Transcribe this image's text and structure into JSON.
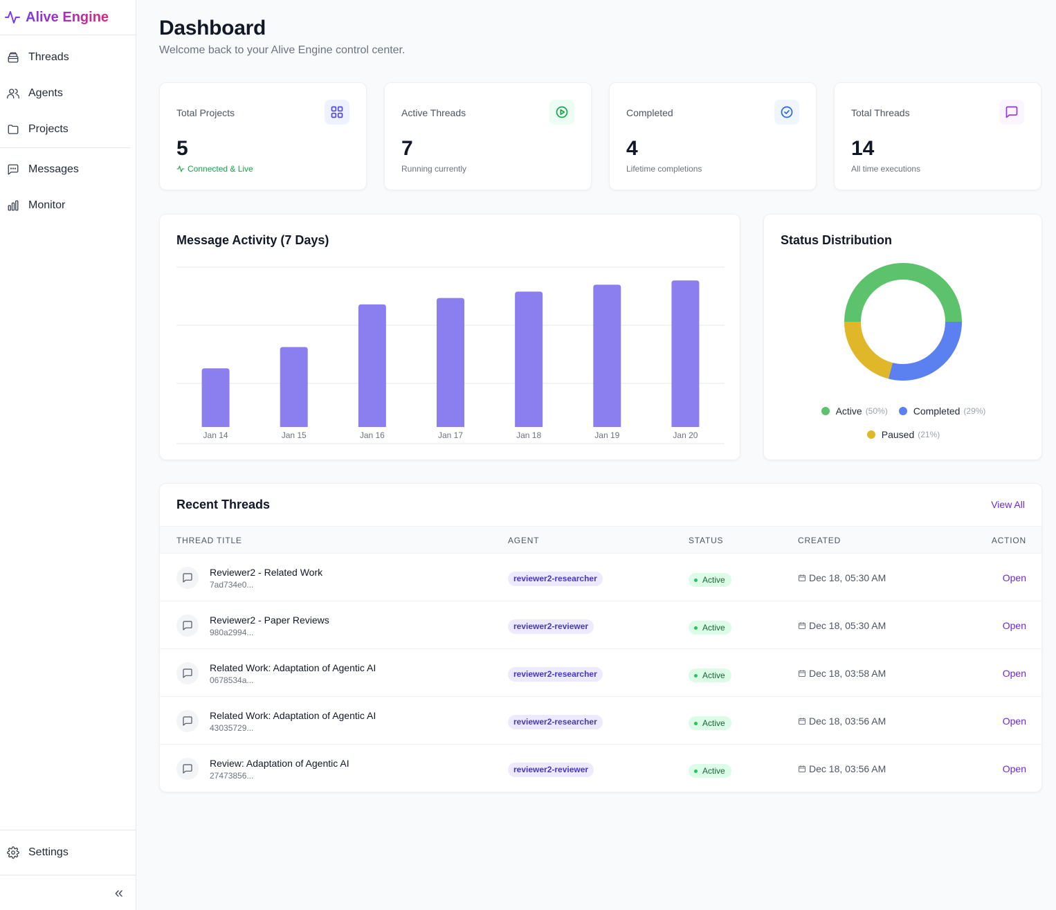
{
  "brand": {
    "name": "Alive Engine"
  },
  "sidebar": {
    "items": [
      {
        "label": "Threads",
        "icon": "threads-icon"
      },
      {
        "label": "Agents",
        "icon": "users-icon"
      },
      {
        "label": "Projects",
        "icon": "folder-icon"
      },
      {
        "label": "Messages",
        "icon": "message-icon"
      },
      {
        "label": "Monitor",
        "icon": "bar-chart-icon"
      }
    ],
    "settings": {
      "label": "Settings",
      "icon": "gear-icon"
    },
    "collapse_glyph": "«"
  },
  "page": {
    "title": "Dashboard",
    "subtitle": "Welcome back to your Alive Engine control center."
  },
  "stats": [
    {
      "label": "Total Projects",
      "value": "5",
      "sub": "Connected & Live",
      "icon": "grid-icon",
      "color": "#4f46e5",
      "bg": "#eef2ff"
    },
    {
      "label": "Active Threads",
      "value": "7",
      "sub": "Running currently",
      "icon": "play-circle-icon",
      "color": "#16a34a",
      "bg": "#ecfdf3"
    },
    {
      "label": "Completed",
      "value": "4",
      "sub": "Lifetime completions",
      "icon": "check-circle-icon",
      "color": "#2563eb",
      "bg": "#eff6ff"
    },
    {
      "label": "Total Threads",
      "value": "14",
      "sub": "All time executions",
      "icon": "message-square-icon",
      "color": "#9333ea",
      "bg": "#faf5ff"
    }
  ],
  "activity": {
    "title": "Message Activity (7 Days)"
  },
  "status": {
    "title": "Status Distribution"
  },
  "chart_data": [
    {
      "type": "bar",
      "title": "Message Activity (7 Days)",
      "categories": [
        "Jan 14",
        "Jan 15",
        "Jan 16",
        "Jan 17",
        "Jan 18",
        "Jan 19",
        "Jan 20"
      ],
      "values": [
        11,
        15,
        23,
        24.2,
        25.4,
        26.7,
        27.5
      ],
      "ylim": [
        0,
        30
      ],
      "grid": true,
      "color": "#8b7ff0"
    },
    {
      "type": "pie",
      "title": "Status Distribution",
      "categories": [
        "Active",
        "Completed",
        "Paused"
      ],
      "values": [
        50,
        29,
        21
      ],
      "labels": [
        "(50%)",
        "(29%)",
        "(21%)"
      ],
      "colors": [
        "#5cc26b",
        "#5b80f0",
        "#e1b72a"
      ],
      "legend": "bottom"
    }
  ],
  "threads": {
    "title": "Recent Threads",
    "view_all": "View All",
    "columns": [
      "THREAD TITLE",
      "AGENT",
      "STATUS",
      "CREATED",
      "ACTION"
    ],
    "rows": [
      {
        "title": "Reviewer2 - Related Work",
        "id": "7ad734e0...",
        "agent": "reviewer2-researcher",
        "status": "Active",
        "created": "Dec 18, 05:30 AM",
        "action": "Open"
      },
      {
        "title": "Reviewer2 - Paper Reviews",
        "id": "980a2994...",
        "agent": "reviewer2-reviewer",
        "status": "Active",
        "created": "Dec 18, 05:30 AM",
        "action": "Open"
      },
      {
        "title": "Related Work: Adaptation of Agentic AI",
        "id": "0678534a...",
        "agent": "reviewer2-researcher",
        "status": "Active",
        "created": "Dec 18, 03:58 AM",
        "action": "Open"
      },
      {
        "title": "Related Work: Adaptation of Agentic AI",
        "id": "43035729...",
        "agent": "reviewer2-researcher",
        "status": "Active",
        "created": "Dec 18, 03:56 AM",
        "action": "Open"
      },
      {
        "title": "Review: Adaptation of Agentic AI",
        "id": "27473856...",
        "agent": "reviewer2-reviewer",
        "status": "Active",
        "created": "Dec 18, 03:56 AM",
        "action": "Open"
      }
    ]
  }
}
